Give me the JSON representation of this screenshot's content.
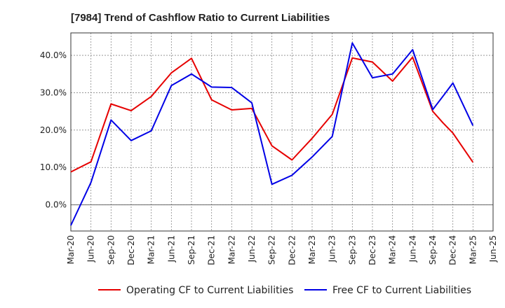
{
  "chart_data": {
    "type": "line",
    "title": "[7984]  Trend of Cashflow Ratio to Current Liabilities",
    "xlabel": "",
    "ylabel": "",
    "x": [
      "Mar-20",
      "Jun-20",
      "Sep-20",
      "Dec-20",
      "Mar-21",
      "Jun-21",
      "Sep-21",
      "Dec-21",
      "Mar-22",
      "Jun-22",
      "Sep-22",
      "Dec-22",
      "Mar-23",
      "Jun-23",
      "Sep-23",
      "Dec-23",
      "Mar-24",
      "Jun-24",
      "Sep-24",
      "Dec-24",
      "Mar-25",
      "Jun-25"
    ],
    "x_ticks": [
      "Mar-20",
      "Jun-20",
      "Sep-20",
      "Dec-20",
      "Mar-21",
      "Jun-21",
      "Sep-21",
      "Dec-21",
      "Mar-22",
      "Jun-22",
      "Sep-22",
      "Dec-22",
      "Mar-23",
      "Jun-23",
      "Sep-23",
      "Dec-23",
      "Mar-24",
      "Jun-24",
      "Sep-24",
      "Dec-24",
      "Mar-25",
      "Jun-25"
    ],
    "y_ticks": [
      0,
      10,
      20,
      30,
      40
    ],
    "y_tick_labels": [
      "0.0%",
      "10.0%",
      "20.0%",
      "30.0%",
      "40.0%"
    ],
    "ylim": [
      -7,
      46
    ],
    "grid": true,
    "legend": "bottom",
    "series": [
      {
        "name": "Operating CF to Current Liabilities",
        "color": "#e60000",
        "points": [
          {
            "x": 0,
            "y": 8.8
          },
          {
            "x": 1,
            "y": 11.5
          },
          {
            "x": 2,
            "y": 27.0
          },
          {
            "x": 3,
            "y": 25.2
          },
          {
            "x": 4,
            "y": 29.0
          },
          {
            "x": 5,
            "y": 35.3
          },
          {
            "x": 6,
            "y": 39.2
          },
          {
            "x": 7,
            "y": 28.1
          },
          {
            "x": 8,
            "y": 25.4
          },
          {
            "x": 9,
            "y": 25.8
          },
          {
            "x": 10,
            "y": 15.8
          },
          {
            "x": 11,
            "y": 12.0
          },
          {
            "x": 12,
            "y": 17.8
          },
          {
            "x": 13,
            "y": 24.2
          },
          {
            "x": 14,
            "y": 39.3
          },
          {
            "x": 15,
            "y": 38.2
          },
          {
            "x": 16,
            "y": 33.1
          },
          {
            "x": 17,
            "y": 39.5
          },
          {
            "x": 18,
            "y": 25.0
          },
          {
            "x": 18.5,
            "y": 22.0
          },
          {
            "x": 19,
            "y": 19.2
          },
          {
            "x": 20,
            "y": 11.4
          }
        ]
      },
      {
        "name": "Free CF to Current Liabilities",
        "color": "#0000e6",
        "points": [
          {
            "x": 0,
            "y": -5.5
          },
          {
            "x": 1,
            "y": 6.0
          },
          {
            "x": 2,
            "y": 22.7
          },
          {
            "x": 3,
            "y": 17.2
          },
          {
            "x": 4,
            "y": 19.8
          },
          {
            "x": 5,
            "y": 31.9
          },
          {
            "x": 6,
            "y": 35.0
          },
          {
            "x": 7,
            "y": 31.5
          },
          {
            "x": 8,
            "y": 31.4
          },
          {
            "x": 9,
            "y": 27.3
          },
          {
            "x": 10,
            "y": 5.5
          },
          {
            "x": 11,
            "y": 7.9
          },
          {
            "x": 12,
            "y": 12.8
          },
          {
            "x": 13,
            "y": 18.3
          },
          {
            "x": 14,
            "y": 43.3
          },
          {
            "x": 15,
            "y": 34.0
          },
          {
            "x": 16,
            "y": 35.0
          },
          {
            "x": 17,
            "y": 41.5
          },
          {
            "x": 18,
            "y": 25.5
          },
          {
            "x": 18.5,
            "y": 29.0
          },
          {
            "x": 19,
            "y": 32.6
          },
          {
            "x": 20,
            "y": 21.2
          }
        ]
      }
    ]
  }
}
